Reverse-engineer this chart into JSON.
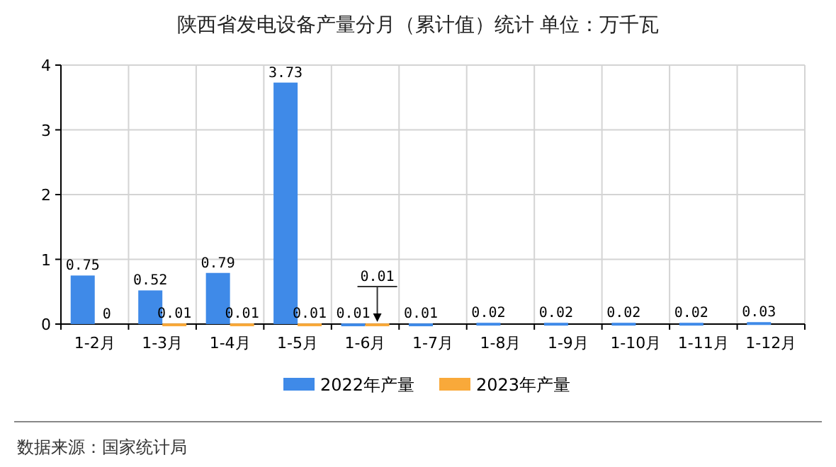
{
  "chart_data": {
    "type": "bar",
    "title": "陕西省发电设备产量分月（累计值）统计 单位：万千瓦",
    "categories": [
      "1-2月",
      "1-3月",
      "1-4月",
      "1-5月",
      "1-6月",
      "1-7月",
      "1-8月",
      "1-9月",
      "1-10月",
      "1-11月",
      "1-12月"
    ],
    "series": [
      {
        "name": "2022年产量",
        "color": "#3f8ae8",
        "values": [
          0.75,
          0.52,
          0.79,
          3.73,
          0.01,
          0.01,
          0.02,
          0.02,
          0.02,
          0.02,
          0.03
        ]
      },
      {
        "name": "2023年产量",
        "color": "#f9a93a",
        "values": [
          0,
          0.01,
          0.01,
          0.01,
          0.01,
          null,
          null,
          null,
          null,
          null,
          null
        ]
      }
    ],
    "ylim": [
      0,
      4
    ],
    "yticks": [
      0,
      1,
      2,
      3,
      4
    ],
    "grid": true,
    "legend": "bottom",
    "data_labels": true,
    "annotations": [
      "数据来源：国家统计局"
    ]
  }
}
